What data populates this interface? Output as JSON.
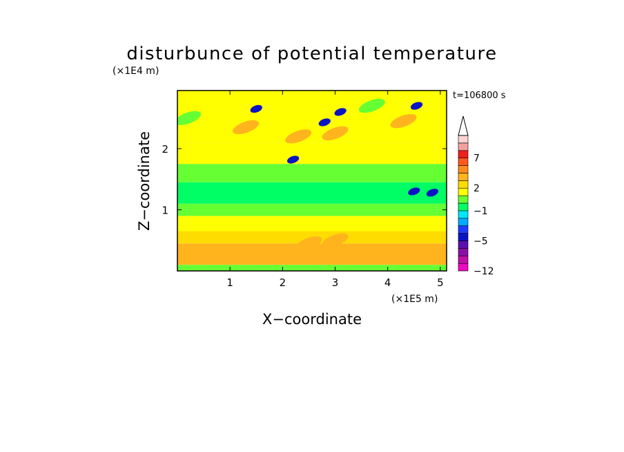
{
  "chart_data": {
    "type": "heatmap",
    "title": "disturbunce of potential temperature",
    "xlabel": "X−coordinate",
    "ylabel": "Z−coordinate",
    "x_unit": "(×1E5 m)",
    "y_unit": "(×1E4 m)",
    "time_label": "t=106800 s",
    "xlim": [
      0,
      5.12
    ],
    "ylim": [
      0,
      2.95
    ],
    "x_ticks": [
      1,
      2,
      3,
      4,
      5
    ],
    "y_ticks": [
      1,
      2
    ],
    "x_tick_labels": [
      "1",
      "2",
      "3",
      "4",
      "5"
    ],
    "y_tick_labels": [
      "1",
      "2"
    ],
    "colorbar": {
      "levels": [
        -12,
        -10,
        -8,
        -6,
        -5,
        -4,
        -3,
        -2,
        -1,
        0,
        1,
        2,
        3,
        4,
        5,
        7,
        9,
        11
      ],
      "tick_labels": [
        {
          "value": 7,
          "label": "7"
        },
        {
          "value": 2,
          "label": "2"
        },
        {
          "value": -1,
          "label": "−1"
        },
        {
          "value": -5,
          "label": "−5"
        },
        {
          "value": -12,
          "label": "−12"
        }
      ],
      "colors": [
        "#ee0abe",
        "#c20fa8",
        "#8a0fa8",
        "#5a0fb0",
        "#0a14c4",
        "#1e3cff",
        "#00aaff",
        "#00e8ff",
        "#00ff64",
        "#66ff33",
        "#ffff00",
        "#ffdc00",
        "#ffb41e",
        "#ff8c1e",
        "#ff5a1e",
        "#f01e1e",
        "#f8a0a0",
        "#fcd2d2"
      ],
      "extend": "max"
    },
    "field_bands": [
      {
        "z": [
          0.0,
          0.1
        ],
        "value": 0.5
      },
      {
        "z": [
          0.1,
          0.45
        ],
        "value": 3.2
      },
      {
        "z": [
          0.45,
          0.65
        ],
        "value": 2.4
      },
      {
        "z": [
          0.65,
          0.9
        ],
        "value": 1.4
      },
      {
        "z": [
          0.9,
          1.1
        ],
        "value": 0.3
      },
      {
        "z": [
          1.1,
          1.45
        ],
        "value": -0.6
      },
      {
        "z": [
          1.45,
          1.75
        ],
        "value": 0.4
      },
      {
        "z": [
          1.75,
          2.1
        ],
        "value": 1.3
      },
      {
        "z": [
          2.1,
          2.6
        ],
        "value": 1.8
      },
      {
        "z": [
          2.6,
          2.95
        ],
        "value": 1.4
      }
    ],
    "anomalies": [
      {
        "x": 1.5,
        "z": 2.65,
        "value": -5
      },
      {
        "x": 2.2,
        "z": 1.82,
        "value": -5
      },
      {
        "x": 2.8,
        "z": 2.43,
        "value": -5
      },
      {
        "x": 3.1,
        "z": 2.6,
        "value": -5
      },
      {
        "x": 4.55,
        "z": 2.7,
        "value": -5
      },
      {
        "x": 4.85,
        "z": 1.28,
        "value": -5
      },
      {
        "x": 4.5,
        "z": 1.3,
        "value": -5
      },
      {
        "x": 2.3,
        "z": 2.2,
        "value": 3.5
      },
      {
        "x": 3.0,
        "z": 2.25,
        "value": 3.5
      },
      {
        "x": 1.3,
        "z": 2.35,
        "value": 3.5
      },
      {
        "x": 2.5,
        "z": 0.45,
        "value": 3.5
      },
      {
        "x": 3.0,
        "z": 0.5,
        "value": 3.5
      },
      {
        "x": 4.3,
        "z": 2.45,
        "value": 3.5
      },
      {
        "x": 3.7,
        "z": 2.7,
        "value": 0.4
      },
      {
        "x": 4.7,
        "z": 1.6,
        "value": 0.4
      },
      {
        "x": 0.2,
        "z": 2.5,
        "value": 0.4
      }
    ]
  }
}
